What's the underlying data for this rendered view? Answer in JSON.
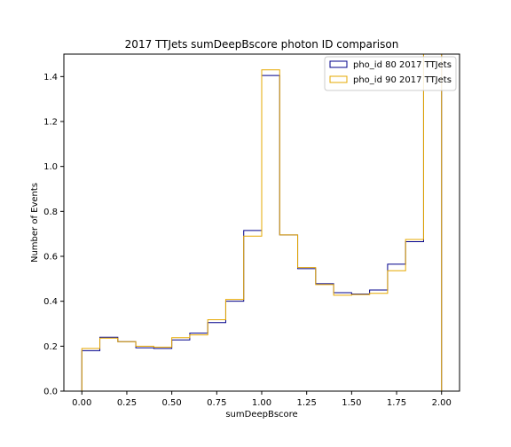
{
  "chart_data": {
    "type": "histogram-step",
    "title": "2017 TTJets sumDeepBscore photon ID comparison",
    "xlabel": "sumDeepBscore",
    "ylabel": "Number of Events",
    "xlim": [
      -0.1,
      2.1
    ],
    "ylim": [
      0,
      1.5
    ],
    "xticks": [
      0.0,
      0.25,
      0.5,
      0.75,
      1.0,
      1.25,
      1.5,
      1.75,
      2.0
    ],
    "xtick_labels": [
      "0.00",
      "0.25",
      "0.50",
      "0.75",
      "1.00",
      "1.25",
      "1.50",
      "1.75",
      "2.00"
    ],
    "yticks": [
      0.0,
      0.2,
      0.4,
      0.6,
      0.8,
      1.0,
      1.2,
      1.4
    ],
    "ytick_labels": [
      "0.0",
      "0.2",
      "0.4",
      "0.6",
      "0.8",
      "1.0",
      "1.2",
      "1.4"
    ],
    "bin_edges": [
      0.0,
      0.1,
      0.2,
      0.3,
      0.4,
      0.5,
      0.6,
      0.7,
      0.8,
      0.9,
      1.0,
      1.1,
      1.2,
      1.3,
      1.4,
      1.5,
      1.6,
      1.7,
      1.8,
      1.9,
      2.0
    ],
    "legend_position": "top-right",
    "grid": false,
    "series": [
      {
        "name": "pho_id 80 2017 TTJets",
        "color": "#00008b",
        "values": [
          0.18,
          0.24,
          0.22,
          0.193,
          0.19,
          0.228,
          0.258,
          0.305,
          0.4,
          0.715,
          1.405,
          0.695,
          0.545,
          0.478,
          0.438,
          0.432,
          0.45,
          0.565,
          0.665,
          1.5
        ]
      },
      {
        "name": "pho_id 90 2017 TTJets",
        "color": "#e6a800",
        "values": [
          0.19,
          0.236,
          0.22,
          0.2,
          0.196,
          0.238,
          0.25,
          0.318,
          0.408,
          0.69,
          1.43,
          0.695,
          0.55,
          0.474,
          0.427,
          0.43,
          0.435,
          0.536,
          0.675,
          1.5
        ]
      }
    ]
  }
}
